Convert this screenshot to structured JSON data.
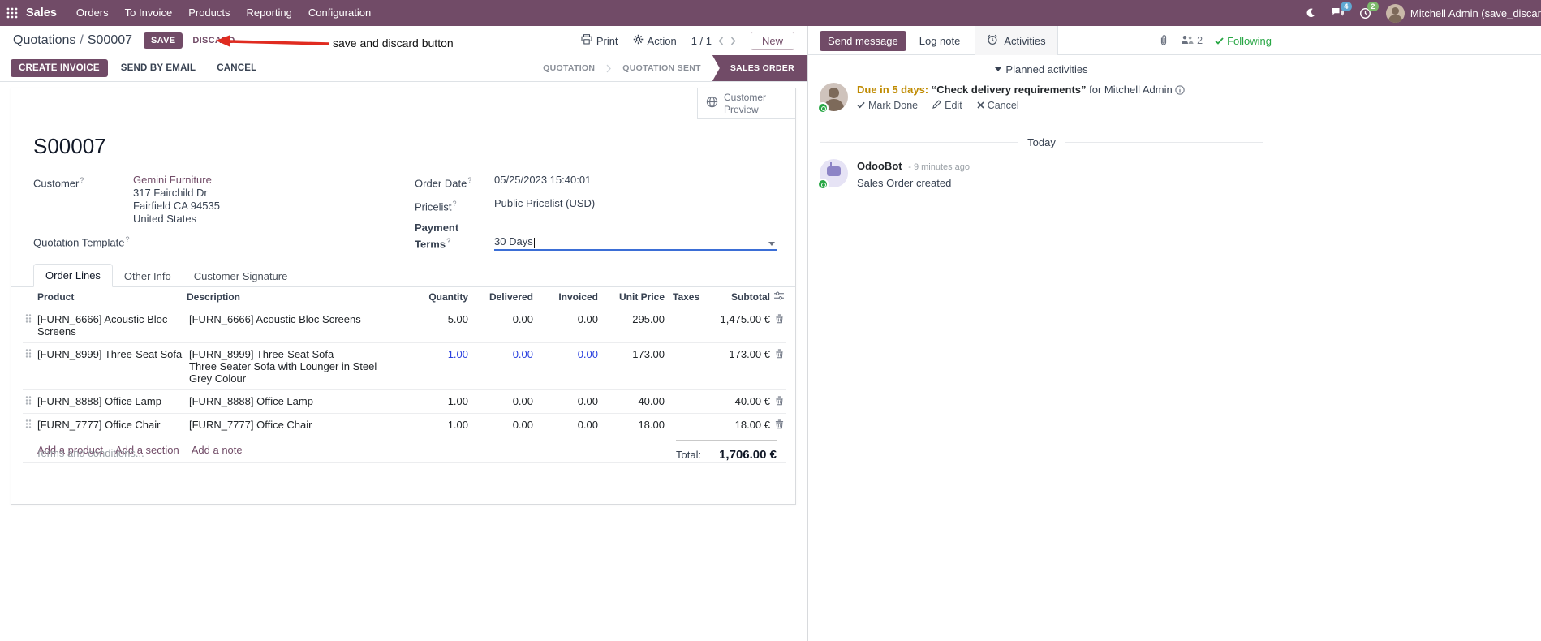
{
  "colors": {
    "accent": "#714B67",
    "link": "#714B67",
    "modified_text": "#2940df",
    "following_green": "#28a745",
    "annotation_red": "#e02b20",
    "due_amber": "#bf8a00"
  },
  "icons": [
    "apps-grid",
    "moon",
    "messages",
    "activity-clock",
    "printer",
    "gear",
    "chevron-left",
    "chevron-right",
    "globe",
    "paperclip",
    "followers",
    "check",
    "pencil",
    "cross",
    "info",
    "trash",
    "drag-handle",
    "column-settings",
    "dropdown-caret"
  ],
  "nav": {
    "app_name": "Sales",
    "menus": [
      "Orders",
      "To Invoice",
      "Products",
      "Reporting",
      "Configuration"
    ],
    "messages_badge": "4",
    "activities_badge": "2",
    "user_name": "Mitchell Admin (save_discar"
  },
  "control": {
    "breadcrumb_parent": "Quotations",
    "breadcrumb_sep": "/",
    "breadcrumb_current": "S00007",
    "save": "SAVE",
    "discard": "DISCARD",
    "print": "Print",
    "action": "Action",
    "pager": "1 / 1",
    "new": "New"
  },
  "annotation": {
    "text": "save and discard button"
  },
  "statusbar": {
    "create_invoice": "CREATE INVOICE",
    "send_by_email": "SEND BY EMAIL",
    "cancel": "CANCEL",
    "states": [
      "QUOTATION",
      "QUOTATION SENT",
      "SALES ORDER"
    ],
    "active_state": "SALES ORDER"
  },
  "sheet": {
    "customer_preview": "Customer Preview",
    "title": "S00007",
    "help_marker": "?",
    "customer": {
      "label": "Customer",
      "name": "Gemini Furniture",
      "address": [
        "317 Fairchild Dr",
        "Fairfield CA 94535",
        "United States"
      ]
    },
    "quotation_template_label": "Quotation Template",
    "order_date": {
      "label": "Order Date",
      "value": "05/25/2023 15:40:01"
    },
    "pricelist": {
      "label": "Pricelist",
      "value": "Public Pricelist (USD)"
    },
    "payment_terms": {
      "label": "Payment Terms",
      "value": "30 Days"
    },
    "tabs": [
      "Order Lines",
      "Other Info",
      "Customer Signature"
    ],
    "active_tab": "Order Lines"
  },
  "order_lines": {
    "headers": [
      "Product",
      "Description",
      "Quantity",
      "Delivered",
      "Invoiced",
      "Unit Price",
      "Taxes",
      "Subtotal"
    ],
    "rows": [
      {
        "product": "[FURN_6666] Acoustic Bloc Screens",
        "description": [
          "[FURN_6666] Acoustic Bloc Screens"
        ],
        "quantity": "5.00",
        "delivered": "0.00",
        "invoiced": "0.00",
        "unit_price": "295.00",
        "taxes": "",
        "subtotal": "1,475.00 €",
        "modified": false
      },
      {
        "product": "[FURN_8999] Three-Seat Sofa",
        "description": [
          "[FURN_8999] Three-Seat Sofa",
          "Three Seater Sofa with Lounger in Steel Grey Colour"
        ],
        "quantity": "1.00",
        "delivered": "0.00",
        "invoiced": "0.00",
        "unit_price": "173.00",
        "taxes": "",
        "subtotal": "173.00 €",
        "modified": true
      },
      {
        "product": "[FURN_8888] Office Lamp",
        "description": [
          "[FURN_8888] Office Lamp"
        ],
        "quantity": "1.00",
        "delivered": "0.00",
        "invoiced": "0.00",
        "unit_price": "40.00",
        "taxes": "",
        "subtotal": "40.00 €",
        "modified": false
      },
      {
        "product": "[FURN_7777] Office Chair",
        "description": [
          "[FURN_7777] Office Chair"
        ],
        "quantity": "1.00",
        "delivered": "0.00",
        "invoiced": "0.00",
        "unit_price": "18.00",
        "taxes": "",
        "subtotal": "18.00 €",
        "modified": false
      }
    ],
    "links": [
      "Add a product",
      "Add a section",
      "Add a note"
    ],
    "terms_placeholder": "Terms and conditions...",
    "total_label": "Total:",
    "total_value": "1,706.00 €"
  },
  "chatter": {
    "send_message": "Send message",
    "log_note": "Log note",
    "activities": "Activities",
    "followers_count": "2",
    "following": "Following",
    "planned_header": "Planned activities",
    "activity": {
      "due": "Due in 5 days:",
      "summary": "“Check delivery requirements”",
      "assignee": "for Mitchell Admin",
      "mark_done": "Mark Done",
      "edit": "Edit",
      "cancel": "Cancel"
    },
    "today": "Today",
    "message": {
      "author": "OdooBot",
      "time": "- 9 minutes ago",
      "body": "Sales Order created"
    }
  }
}
